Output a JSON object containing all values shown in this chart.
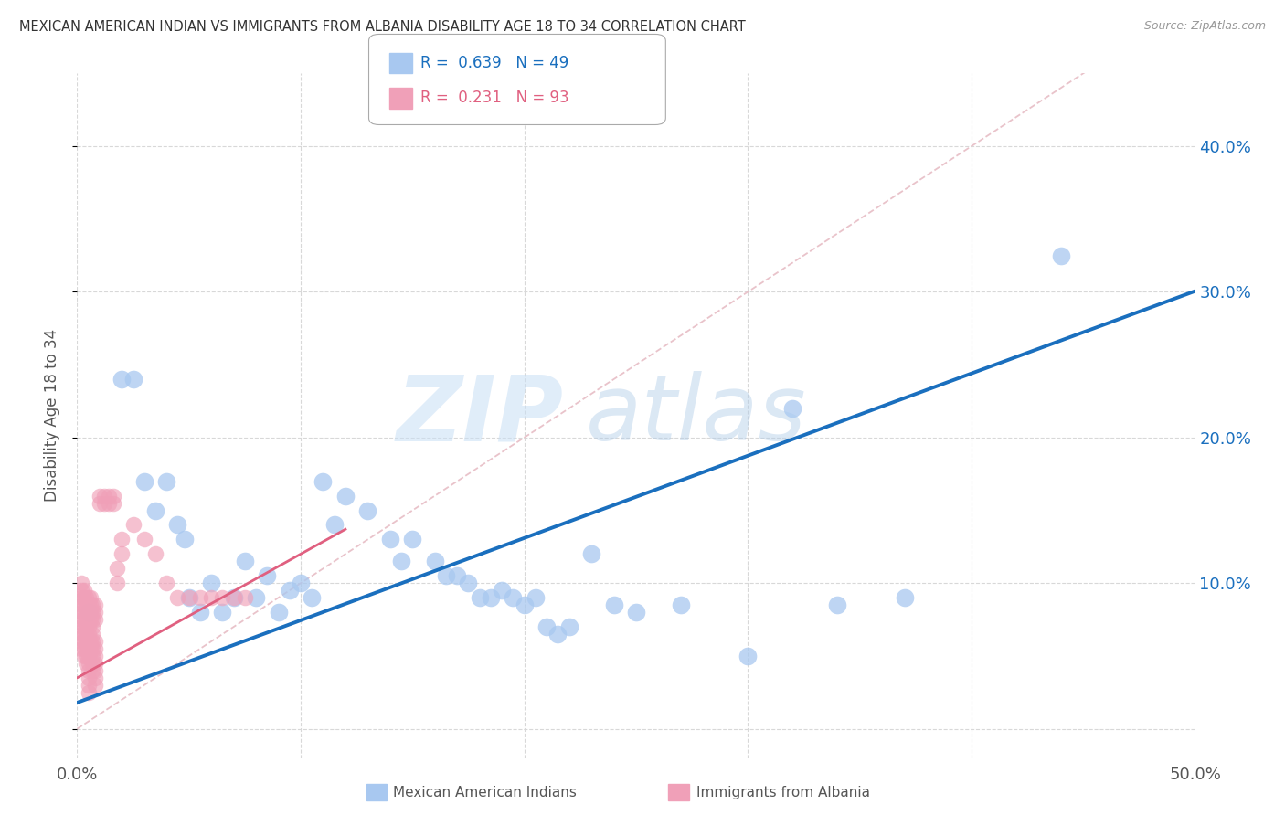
{
  "title": "MEXICAN AMERICAN INDIAN VS IMMIGRANTS FROM ALBANIA DISABILITY AGE 18 TO 34 CORRELATION CHART",
  "source": "Source: ZipAtlas.com",
  "ylabel": "Disability Age 18 to 34",
  "xlim": [
    0.0,
    0.5
  ],
  "ylim": [
    -0.02,
    0.45
  ],
  "yticks": [
    0.0,
    0.1,
    0.2,
    0.3,
    0.4
  ],
  "yticklabels_right": [
    "",
    "10.0%",
    "20.0%",
    "30.0%",
    "40.0%"
  ],
  "xtick_vals": [
    0.0,
    0.1,
    0.2,
    0.3,
    0.4,
    0.5
  ],
  "xticklabels": [
    "0.0%",
    "",
    "",
    "",
    "",
    "50.0%"
  ],
  "legend1_R": "0.639",
  "legend1_N": "49",
  "legend2_R": "0.231",
  "legend2_N": "93",
  "blue_color": "#a8c8f0",
  "pink_color": "#f0a0b8",
  "blue_line_color": "#1a6fbe",
  "pink_line_color": "#e06080",
  "diagonal_color": "#e8c0c8",
  "watermark_zip_color": "#c8dff5",
  "watermark_atlas_color": "#b0cce8",
  "background_color": "#ffffff",
  "grid_color": "#d8d8d8",
  "blue_scatter_x": [
    0.02,
    0.025,
    0.03,
    0.035,
    0.04,
    0.045,
    0.048,
    0.05,
    0.055,
    0.06,
    0.065,
    0.07,
    0.075,
    0.08,
    0.085,
    0.09,
    0.095,
    0.1,
    0.105,
    0.11,
    0.115,
    0.12,
    0.13,
    0.14,
    0.145,
    0.15,
    0.16,
    0.165,
    0.17,
    0.175,
    0.18,
    0.185,
    0.19,
    0.195,
    0.2,
    0.205,
    0.21,
    0.215,
    0.22,
    0.23,
    0.24,
    0.25,
    0.27,
    0.3,
    0.32,
    0.34,
    0.37,
    0.44,
    0.005
  ],
  "blue_scatter_y": [
    0.24,
    0.24,
    0.17,
    0.15,
    0.17,
    0.14,
    0.13,
    0.09,
    0.08,
    0.1,
    0.08,
    0.09,
    0.115,
    0.09,
    0.105,
    0.08,
    0.095,
    0.1,
    0.09,
    0.17,
    0.14,
    0.16,
    0.15,
    0.13,
    0.115,
    0.13,
    0.115,
    0.105,
    0.105,
    0.1,
    0.09,
    0.09,
    0.095,
    0.09,
    0.085,
    0.09,
    0.07,
    0.065,
    0.07,
    0.12,
    0.085,
    0.08,
    0.085,
    0.05,
    0.22,
    0.085,
    0.09,
    0.325,
    0.08
  ],
  "pink_scatter_x": [
    0.002,
    0.002,
    0.002,
    0.002,
    0.002,
    0.002,
    0.002,
    0.002,
    0.002,
    0.002,
    0.003,
    0.003,
    0.003,
    0.003,
    0.003,
    0.003,
    0.003,
    0.003,
    0.003,
    0.003,
    0.004,
    0.004,
    0.004,
    0.004,
    0.004,
    0.004,
    0.004,
    0.004,
    0.004,
    0.004,
    0.005,
    0.005,
    0.005,
    0.005,
    0.005,
    0.005,
    0.005,
    0.005,
    0.005,
    0.005,
    0.005,
    0.005,
    0.005,
    0.005,
    0.006,
    0.006,
    0.006,
    0.006,
    0.006,
    0.006,
    0.007,
    0.007,
    0.007,
    0.007,
    0.007,
    0.007,
    0.007,
    0.007,
    0.007,
    0.007,
    0.008,
    0.008,
    0.008,
    0.008,
    0.008,
    0.008,
    0.008,
    0.008,
    0.008,
    0.008,
    0.01,
    0.01,
    0.012,
    0.012,
    0.014,
    0.014,
    0.016,
    0.016,
    0.018,
    0.018,
    0.02,
    0.02,
    0.025,
    0.03,
    0.035,
    0.04,
    0.045,
    0.05,
    0.055,
    0.06,
    0.065,
    0.07,
    0.075
  ],
  "pink_scatter_y": [
    0.065,
    0.07,
    0.075,
    0.08,
    0.085,
    0.09,
    0.095,
    0.1,
    0.06,
    0.055,
    0.065,
    0.07,
    0.075,
    0.08,
    0.085,
    0.09,
    0.095,
    0.06,
    0.055,
    0.05,
    0.065,
    0.07,
    0.075,
    0.08,
    0.085,
    0.09,
    0.06,
    0.055,
    0.05,
    0.045,
    0.065,
    0.07,
    0.075,
    0.08,
    0.085,
    0.09,
    0.06,
    0.055,
    0.05,
    0.045,
    0.04,
    0.035,
    0.03,
    0.025,
    0.075,
    0.08,
    0.085,
    0.09,
    0.06,
    0.055,
    0.065,
    0.07,
    0.075,
    0.08,
    0.085,
    0.06,
    0.055,
    0.05,
    0.045,
    0.04,
    0.075,
    0.08,
    0.085,
    0.06,
    0.055,
    0.05,
    0.045,
    0.04,
    0.035,
    0.03,
    0.155,
    0.16,
    0.155,
    0.16,
    0.155,
    0.16,
    0.155,
    0.16,
    0.1,
    0.11,
    0.12,
    0.13,
    0.14,
    0.13,
    0.12,
    0.1,
    0.09,
    0.09,
    0.09,
    0.09,
    0.09,
    0.09,
    0.09
  ]
}
